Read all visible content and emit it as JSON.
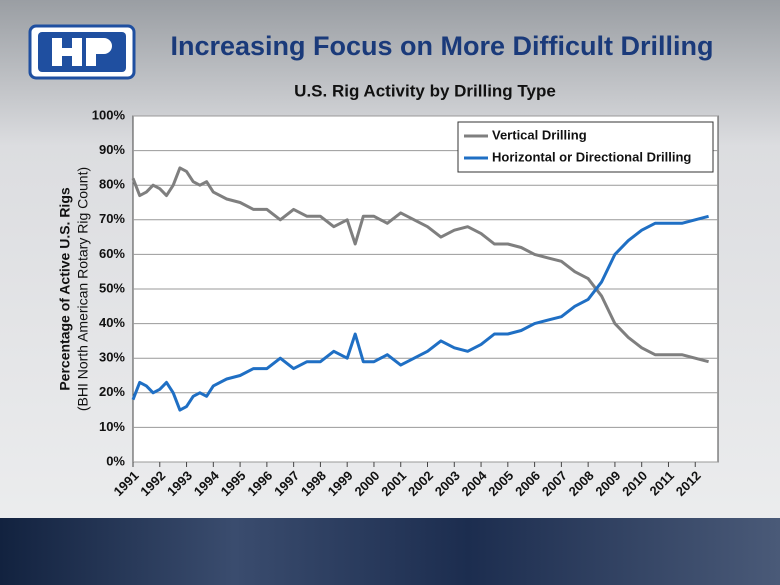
{
  "heading": "Increasing Focus on More Difficult Drilling",
  "chart_data": {
    "type": "line",
    "title": "U.S. Rig Activity by Drilling Type",
    "ylabel": [
      "Percentage of Active U.S. Rigs",
      "(BHI North American Rotary Rig Count)"
    ],
    "x": [
      1991.0,
      1991.25,
      1991.5,
      1991.75,
      1992.0,
      1992.25,
      1992.5,
      1992.75,
      1993.0,
      1993.25,
      1993.5,
      1993.75,
      1994.0,
      1994.5,
      1995.0,
      1995.5,
      1996.0,
      1996.5,
      1997.0,
      1997.5,
      1998.0,
      1998.5,
      1999.0,
      1999.3,
      1999.6,
      2000.0,
      2000.5,
      2001.0,
      2001.5,
      2002.0,
      2002.5,
      2003.0,
      2003.5,
      2004.0,
      2004.5,
      2005.0,
      2005.5,
      2006.0,
      2006.5,
      2007.0,
      2007.5,
      2008.0,
      2008.5,
      2009.0,
      2009.5,
      2010.0,
      2010.5,
      2011.0,
      2011.5,
      2012.0,
      2012.5
    ],
    "series": [
      {
        "name": "Vertical Drilling",
        "color": "#7f7f7f",
        "values": [
          82,
          77,
          78,
          80,
          79,
          77,
          80,
          85,
          84,
          81,
          80,
          81,
          78,
          76,
          75,
          73,
          73,
          70,
          73,
          71,
          71,
          68,
          70,
          63,
          71,
          71,
          69,
          72,
          70,
          68,
          65,
          67,
          68,
          66,
          63,
          63,
          62,
          60,
          59,
          58,
          55,
          53,
          48,
          40,
          36,
          33,
          31,
          31,
          31,
          30,
          29
        ]
      },
      {
        "name": "Horizontal or Directional Drilling",
        "color": "#1f6fc4",
        "values": [
          18,
          23,
          22,
          20,
          21,
          23,
          20,
          15,
          16,
          19,
          20,
          19,
          22,
          24,
          25,
          27,
          27,
          30,
          27,
          29,
          29,
          32,
          30,
          37,
          29,
          29,
          31,
          28,
          30,
          32,
          35,
          33,
          32,
          34,
          37,
          37,
          38,
          40,
          41,
          42,
          45,
          47,
          52,
          60,
          64,
          67,
          69,
          69,
          69,
          70,
          71
        ]
      }
    ],
    "xlim": [
      1991,
      2012.85
    ],
    "xticks": [
      1991,
      1992,
      1993,
      1994,
      1995,
      1996,
      1997,
      1998,
      1999,
      2000,
      2001,
      2002,
      2003,
      2004,
      2005,
      2006,
      2007,
      2008,
      2009,
      2010,
      2011,
      2012
    ],
    "ylim": [
      0,
      100
    ],
    "yticks": [
      {
        "value": 0,
        "label": "0%"
      },
      {
        "value": 10,
        "label": "10%"
      },
      {
        "value": 20,
        "label": "20%"
      },
      {
        "value": 30,
        "label": "30%"
      },
      {
        "value": 40,
        "label": "40%"
      },
      {
        "value": 50,
        "label": "50%"
      },
      {
        "value": 60,
        "label": "60%"
      },
      {
        "value": 70,
        "label": "70%"
      },
      {
        "value": 80,
        "label": "80%"
      },
      {
        "value": 90,
        "label": "90%"
      },
      {
        "value": 100,
        "label": "100%"
      }
    ],
    "grid": true,
    "legend": "top-right"
  }
}
